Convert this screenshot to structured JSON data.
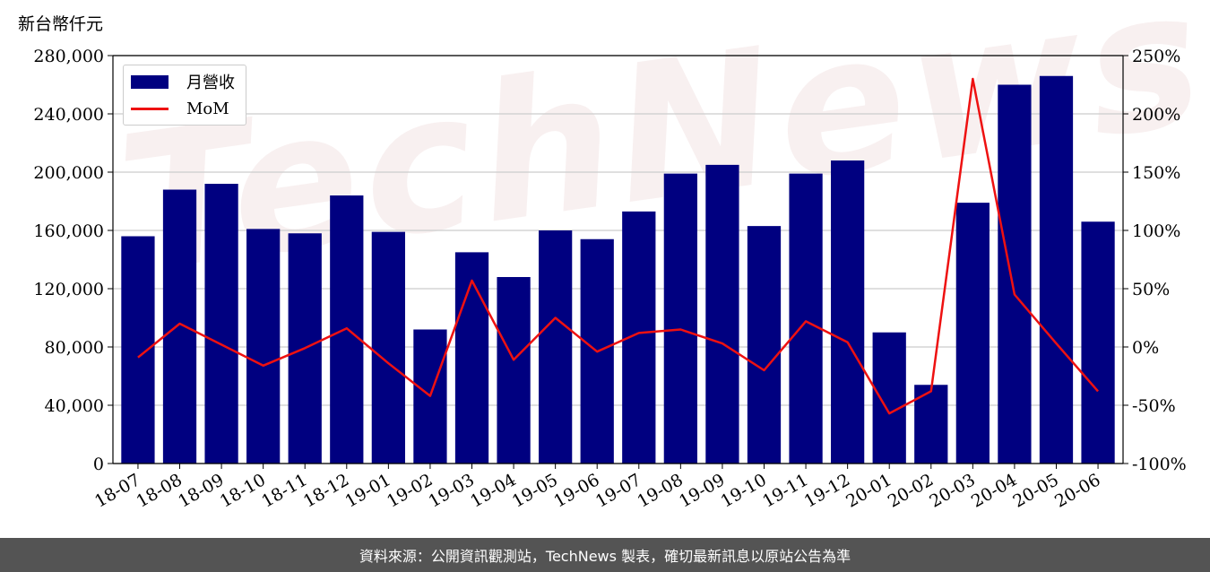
{
  "unit_label": "新台幣仟元",
  "watermark": "TechNews",
  "footer": "資料來源：公開資訊觀測站，TechNews 製表，確切最新訊息以原站公告為準",
  "colors": {
    "bar": "#000080",
    "line": "#ee1111",
    "grid": "#cccccc",
    "footer_bg": "#545454"
  },
  "legend": {
    "bar_label": "月營收",
    "line_label": "MoM",
    "placement": "upper-left"
  },
  "chart_data": {
    "type": "bar+line",
    "categories": [
      "18-07",
      "18-08",
      "18-09",
      "18-10",
      "18-11",
      "18-12",
      "19-01",
      "19-02",
      "19-03",
      "19-04",
      "19-05",
      "19-06",
      "19-07",
      "19-08",
      "19-09",
      "19-10",
      "19-11",
      "19-12",
      "20-01",
      "20-02",
      "20-03",
      "20-04",
      "20-05",
      "20-06"
    ],
    "series": [
      {
        "name": "月營收",
        "type": "bar",
        "axis": "left",
        "values": [
          156000,
          188000,
          192000,
          161000,
          158000,
          184000,
          159000,
          92000,
          145000,
          128000,
          160000,
          154000,
          173000,
          199000,
          205000,
          163000,
          199000,
          208000,
          90000,
          54000,
          179000,
          260000,
          266000,
          166000
        ]
      },
      {
        "name": "MoM",
        "type": "line",
        "axis": "right",
        "values": [
          -9,
          20,
          2,
          -16,
          -1,
          16,
          -14,
          -42,
          57,
          -11,
          25,
          -4,
          12,
          15,
          3,
          -20,
          22,
          4,
          -57,
          -38,
          230,
          45,
          3,
          -38
        ]
      }
    ],
    "y_left": {
      "ylim": [
        0,
        280000
      ],
      "ticks": [
        "0",
        "40,000",
        "80,000",
        "120,000",
        "160,000",
        "200,000",
        "240,000",
        "280,000"
      ]
    },
    "y_right": {
      "ylim": [
        -100,
        250
      ],
      "ticks": [
        "-100%",
        "-50%",
        "0%",
        "50%",
        "100%",
        "150%",
        "200%",
        "250%"
      ]
    },
    "grid": true
  }
}
